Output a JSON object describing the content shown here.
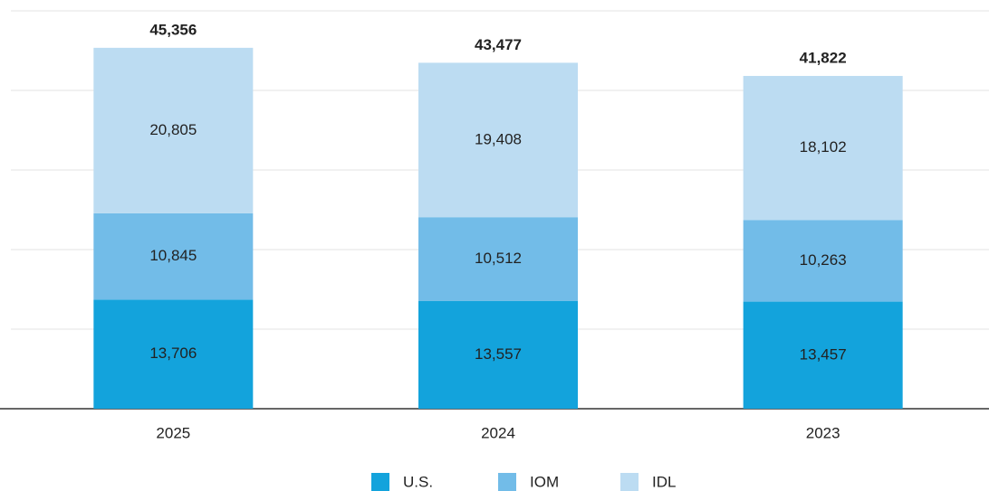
{
  "chart_data": {
    "type": "stacked_bar",
    "categories": [
      "2025",
      "2024",
      "2023"
    ],
    "series": [
      {
        "name": "U.S.",
        "color": "#13a3dc",
        "values": [
          13706,
          13557,
          13457
        ],
        "value_labels": [
          "13,706",
          "13,557",
          "13,457"
        ]
      },
      {
        "name": "IOM",
        "color": "#72bce8",
        "values": [
          10845,
          10512,
          10263
        ],
        "value_labels": [
          "10,845",
          "10,512",
          "10,263"
        ]
      },
      {
        "name": "IDL",
        "color": "#bcdcf2",
        "values": [
          20805,
          19408,
          18102
        ],
        "value_labels": [
          "20,805",
          "19,408",
          "18,102"
        ]
      }
    ],
    "totals": [
      45356,
      43477,
      41822
    ],
    "total_labels": [
      "45,356",
      "43,477",
      "41,822"
    ],
    "ylim": [
      0,
      50000
    ],
    "yticks": [
      0,
      10000,
      20000,
      30000,
      40000,
      50000
    ],
    "grid": true,
    "legend": "bottom"
  }
}
